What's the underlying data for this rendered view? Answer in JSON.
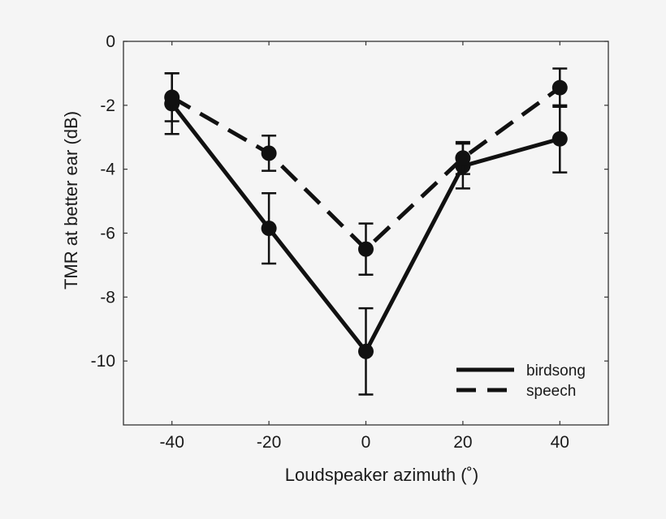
{
  "chart_data": {
    "type": "line",
    "title": "",
    "xlabel": "Loudspeaker azimuth (˚)",
    "ylabel": "TMR at better ear (dB)",
    "xlim": [
      -50,
      50
    ],
    "ylim": [
      -12,
      0
    ],
    "xticks": [
      -40,
      -20,
      0,
      20,
      40
    ],
    "yticks": [
      0,
      -2,
      -4,
      -6,
      -8,
      -10
    ],
    "grid": false,
    "legend_position": "lower right",
    "x": [
      -40,
      -20,
      0,
      20,
      40
    ],
    "series": [
      {
        "name": "birdsong",
        "style": "solid",
        "values": [
          -1.95,
          -5.85,
          -9.7,
          -3.9,
          -3.05
        ],
        "error": [
          0.95,
          1.1,
          1.35,
          0.7,
          1.05
        ]
      },
      {
        "name": "speech",
        "style": "dashed",
        "values": [
          -1.75,
          -3.5,
          -6.5,
          -3.65,
          -1.45
        ],
        "error": [
          0.75,
          0.55,
          0.8,
          0.5,
          0.6
        ]
      }
    ]
  },
  "colors": {
    "background": "#f5f5f5",
    "line": "#111111",
    "axis": "#333333"
  }
}
